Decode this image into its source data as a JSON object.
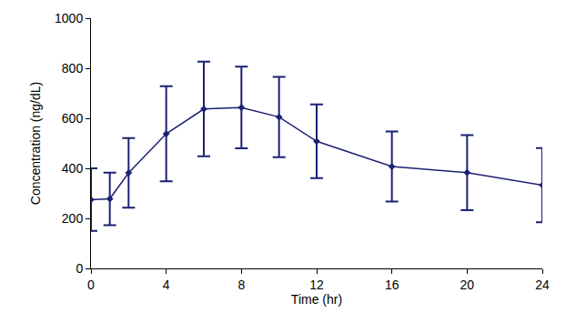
{
  "chart_data": {
    "type": "line",
    "x_label": "Time (hr)",
    "y_label": "Concentration (ng/dL)",
    "x": [
      0,
      1,
      2,
      4,
      6,
      8,
      10,
      12,
      16,
      20,
      24
    ],
    "series": [
      {
        "color": "#1b2173",
        "marker": "diamond",
        "line_style": "solid",
        "values": [
          275,
          278,
          382,
          538,
          637,
          643,
          605,
          508,
          407,
          383,
          333
        ],
        "error": [
          125,
          105,
          139,
          190,
          189,
          163,
          160,
          147,
          140,
          150,
          148
        ]
      }
    ],
    "xlim": [
      0,
      24
    ],
    "xticks": [
      0,
      4,
      8,
      12,
      16,
      20,
      24
    ],
    "ylim": [
      0,
      1000
    ],
    "yticks": [
      0,
      200,
      400,
      600,
      800,
      1000
    ],
    "grid": false
  }
}
